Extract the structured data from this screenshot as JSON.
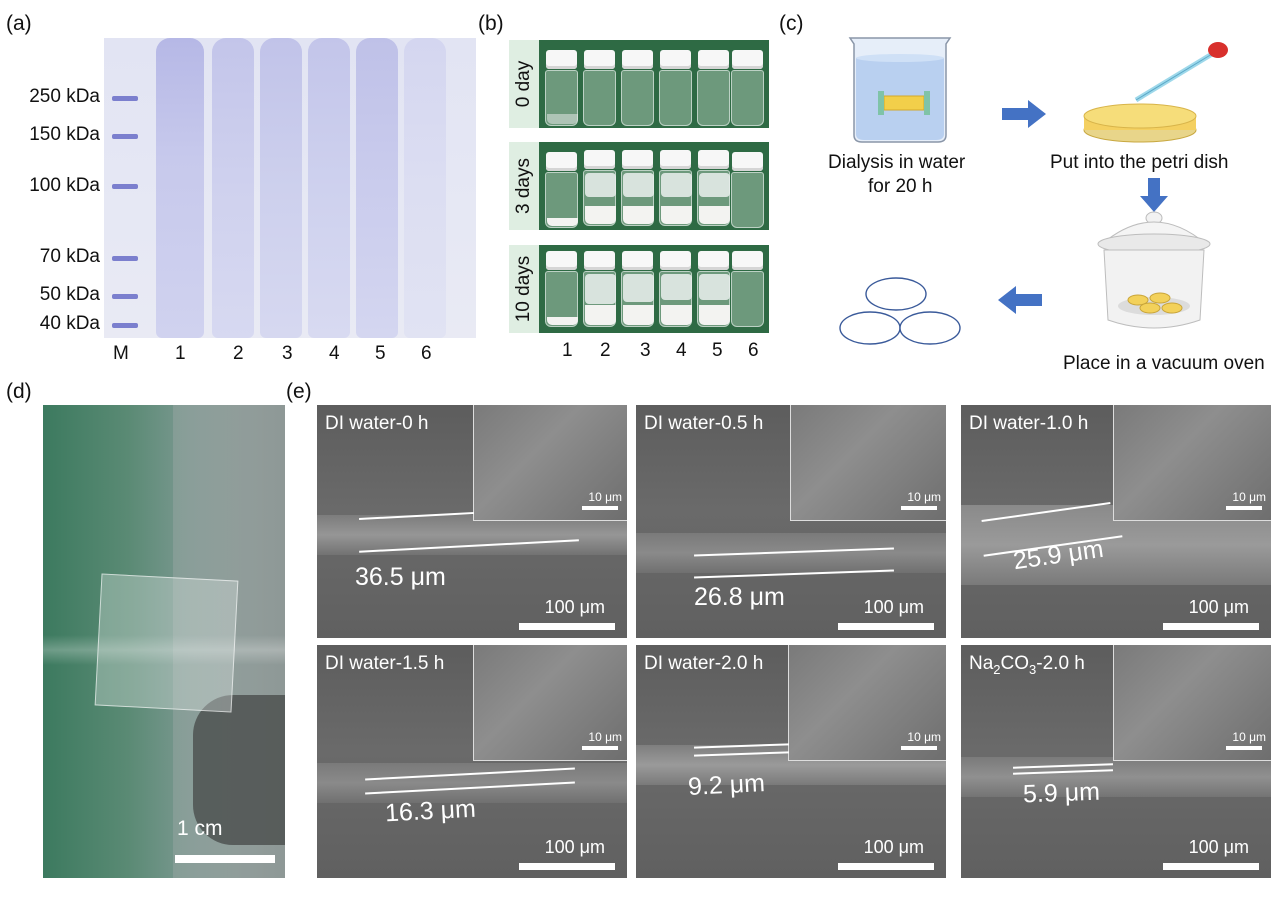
{
  "panel_labels": {
    "a": "(a)",
    "b": "(b)",
    "c": "(c)",
    "d": "(d)",
    "e": "(e)"
  },
  "panel_a": {
    "mw_labels": [
      "250 kDa",
      "150 kDa",
      "100 kDa",
      "70 kDa",
      "50 kDa",
      "40 kDa"
    ],
    "lanes": [
      "M",
      "1",
      "2",
      "3",
      "4",
      "5",
      "6"
    ]
  },
  "panel_b": {
    "rows": [
      "0 day",
      "3 days",
      "10 days"
    ],
    "vials": [
      "1",
      "2",
      "3",
      "4",
      "5",
      "6"
    ]
  },
  "panel_c": {
    "step1": "Dialysis in water",
    "step1b": "for 20 h",
    "step2": "Put into the petri dish",
    "step3": "Place in a vacuum  oven"
  },
  "panel_d": {
    "scale": "1 cm"
  },
  "panel_e": {
    "inset_scale": "10 μm",
    "main_scale": "100 μm",
    "images": [
      {
        "title": "DI water-0 h",
        "thickness": "36.5 μm"
      },
      {
        "title": "DI water-0.5 h",
        "thickness": "26.8 μm"
      },
      {
        "title": "DI water-1.0 h",
        "thickness": "25.9 μm"
      },
      {
        "title": "DI water-1.5 h",
        "thickness": "16.3 μm"
      },
      {
        "title": "DI water-2.0 h",
        "thickness": "9.2 μm"
      },
      {
        "title_prefix": "Na",
        "title_sub1": "2",
        "title_mid": "CO",
        "title_sub2": "3",
        "title_suffix": "-2.0 h",
        "thickness": "5.9 μm"
      }
    ]
  },
  "colors": {
    "gel_band": "#7b7fce",
    "vial_bg": "#2e6a44",
    "arrow": "#4472c4"
  }
}
